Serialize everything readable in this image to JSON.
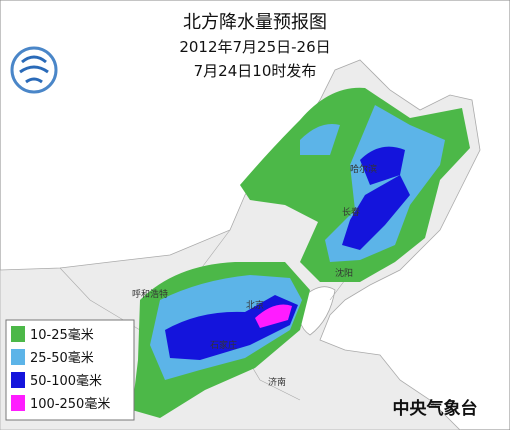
{
  "header": {
    "title": "北方降水量预报图",
    "period": "2012年7月25日-26日",
    "issued": "7月24日10时发布"
  },
  "legend": [
    {
      "label": "10-25毫米",
      "color": "#4cb848"
    },
    {
      "label": "25-50毫米",
      "color": "#5cb4e8"
    },
    {
      "label": "50-100毫米",
      "color": "#1414dc"
    },
    {
      "label": "100-250毫米",
      "color": "#ff1cff"
    }
  ],
  "cities": [
    {
      "label": "哈尔滨"
    },
    {
      "label": "长春"
    },
    {
      "label": "沈阳"
    },
    {
      "label": "呼和浩特"
    },
    {
      "label": "北京"
    },
    {
      "label": "石家庄"
    },
    {
      "label": "济南"
    }
  ],
  "footer": "中央气象台"
}
